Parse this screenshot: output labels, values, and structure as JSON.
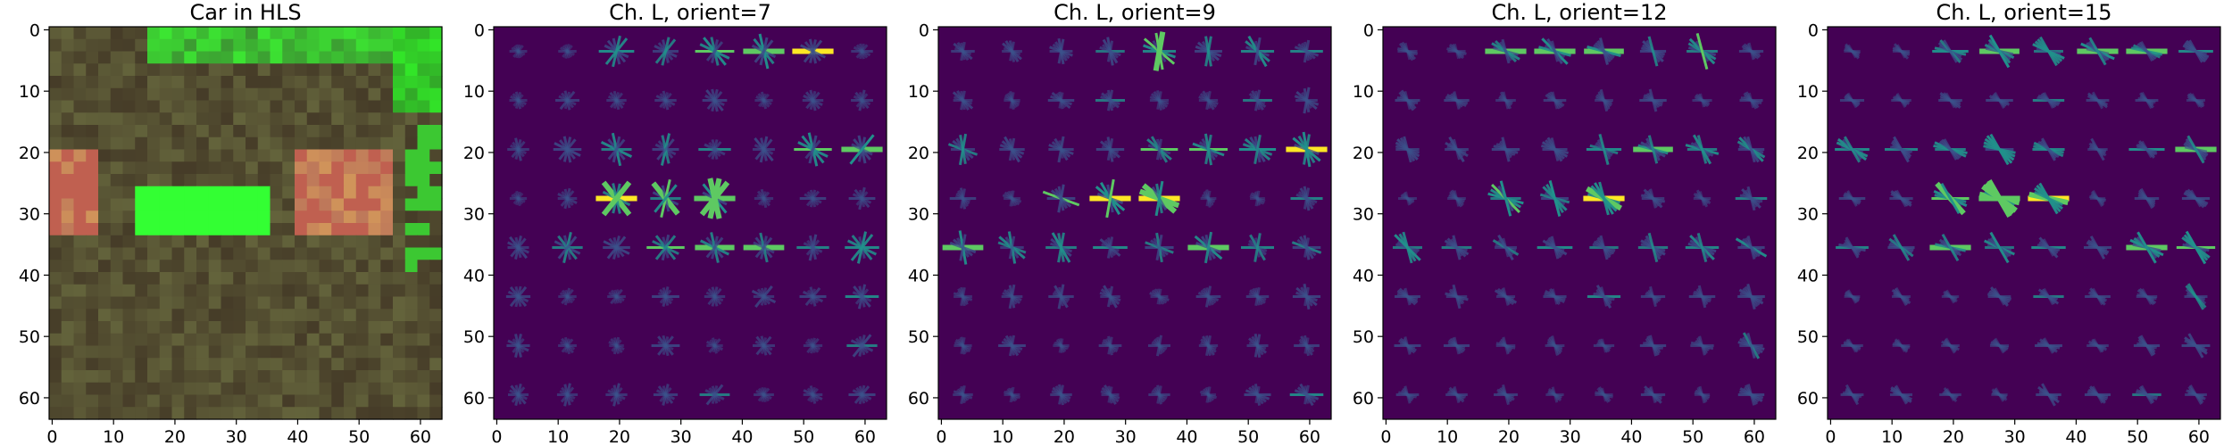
{
  "figure": {
    "panels": [
      {
        "id": "car",
        "title": "Car in HLS",
        "kind": "hls-image"
      },
      {
        "id": "orient7",
        "title": "Ch. L, orient=7",
        "kind": "hog",
        "orient": 7
      },
      {
        "id": "orient9",
        "title": "Ch. L, orient=9",
        "kind": "hog",
        "orient": 9
      },
      {
        "id": "orient12",
        "title": "Ch. L, orient=12",
        "kind": "hog",
        "orient": 12
      },
      {
        "id": "orient15",
        "title": "Ch. L, orient=15",
        "kind": "hog",
        "orient": 15
      }
    ],
    "x_ticks": [
      "0",
      "10",
      "20",
      "30",
      "40",
      "50",
      "60"
    ],
    "y_ticks": [
      "0",
      "10",
      "20",
      "30",
      "40",
      "50",
      "60"
    ],
    "colors": {
      "hog_background": "#440154",
      "hog_low": "#3b528b",
      "hog_mid": "#21918c",
      "hog_high": "#5ec962",
      "hog_peak": "#fde725",
      "car_base": "#5a4a35",
      "car_green": "#33ff33",
      "car_red": "#c06050"
    }
  }
}
